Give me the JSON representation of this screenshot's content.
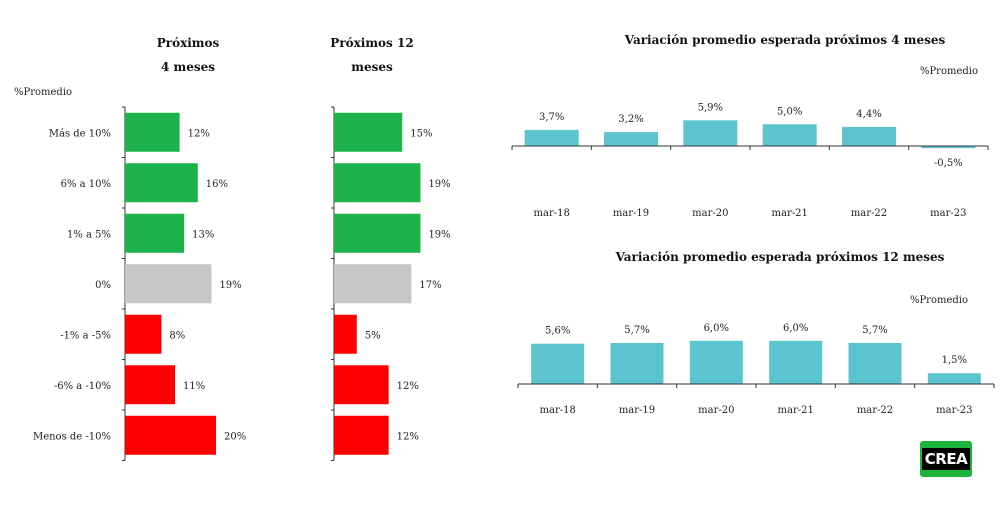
{
  "chart_data": [
    {
      "type": "bar",
      "orientation": "horizontal",
      "title_lines": [
        "Próximos",
        "4 meses"
      ],
      "ylabel": "%Promedio",
      "categories": [
        "Más de 10%",
        "6% a 10%",
        "1% a 5%",
        "0%",
        "-1% a -5%",
        "-6% a -10%",
        "Menos de -10%"
      ],
      "values": [
        12,
        16,
        13,
        19,
        8,
        11,
        20
      ],
      "value_labels": [
        "12%",
        "16%",
        "13%",
        "19%",
        "8%",
        "11%",
        "20%"
      ],
      "colors": [
        "#1db34a",
        "#1db34a",
        "#1db34a",
        "#c6c6c6",
        "#ff0000",
        "#ff0000",
        "#ff0000"
      ],
      "xlim": [
        0,
        20
      ]
    },
    {
      "type": "bar",
      "orientation": "horizontal",
      "title_lines": [
        "Próximos 12",
        "meses"
      ],
      "categories": [
        "Más de 10%",
        "6% a 10%",
        "1% a 5%",
        "0%",
        "-1% a -5%",
        "-6% a -10%",
        "Menos de -10%"
      ],
      "values": [
        15,
        19,
        19,
        17,
        5,
        12,
        12
      ],
      "value_labels": [
        "15%",
        "19%",
        "19%",
        "17%",
        "5%",
        "12%",
        "12%"
      ],
      "colors": [
        "#1db34a",
        "#1db34a",
        "#1db34a",
        "#c6c6c6",
        "#ff0000",
        "#ff0000",
        "#ff0000"
      ],
      "xlim": [
        0,
        20
      ]
    },
    {
      "type": "bar",
      "title": "Variación promedio esperada próximos 4 meses",
      "ylabel": "%Promedio",
      "categories": [
        "mar-18",
        "mar-19",
        "mar-20",
        "mar-21",
        "mar-22",
        "mar-23"
      ],
      "values": [
        3.7,
        3.2,
        5.9,
        5.0,
        4.4,
        -0.5
      ],
      "value_labels": [
        "3,7%",
        "3,2%",
        "5,9%",
        "5,0%",
        "4,4%",
        "-0,5%"
      ],
      "color": "#5bc4cf",
      "ylim": [
        -1,
        9
      ]
    },
    {
      "type": "bar",
      "title": "Variación promedio esperada próximos 12 meses",
      "ylabel": "%Promedio",
      "categories": [
        "mar-18",
        "mar-19",
        "mar-20",
        "mar-21",
        "mar-22",
        "mar-23"
      ],
      "values": [
        5.6,
        5.7,
        6.0,
        6.0,
        5.7,
        1.5
      ],
      "value_labels": [
        "5,6%",
        "5,7%",
        "6,0%",
        "6,0%",
        "5,7%",
        "1,5%"
      ],
      "color": "#5bc4cf",
      "ylim": [
        0,
        7.4
      ]
    }
  ],
  "logo": {
    "text": "CREA",
    "color": "#1db33a"
  }
}
